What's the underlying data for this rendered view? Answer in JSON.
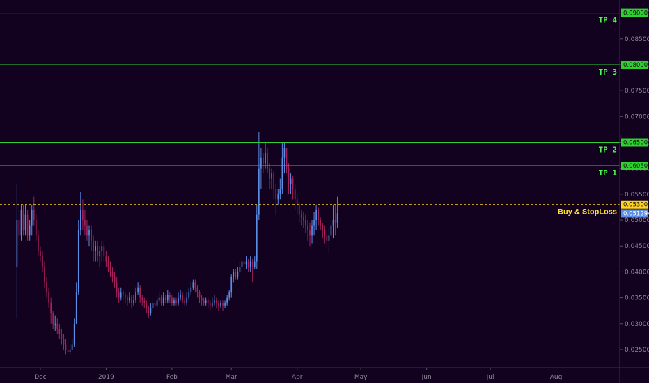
{
  "chart_data": {
    "type": "candlestick",
    "y_axis": {
      "range": [
        0.0215,
        0.0925
      ],
      "ticks": [
        "0.025000",
        "0.030000",
        "0.035000",
        "0.040000",
        "0.045000",
        "0.050000",
        "0.055000",
        "0.060000",
        "0.065000",
        "0.070000",
        "0.075000",
        "0.080000",
        "0.085000",
        "0.090000"
      ],
      "position": "right"
    },
    "x_axis": {
      "range": [
        "2018-11-12",
        "2019-08-31"
      ],
      "ticks": [
        {
          "label": "Dec",
          "date": "2018-12-01"
        },
        {
          "label": "2019",
          "date": "2019-01-01"
        },
        {
          "label": "Feb",
          "date": "2019-02-01"
        },
        {
          "label": "Mar",
          "date": "2019-03-01"
        },
        {
          "label": "Apr",
          "date": "2019-04-01"
        },
        {
          "label": "May",
          "date": "2019-05-01"
        },
        {
          "label": "Jun",
          "date": "2019-06-01"
        },
        {
          "label": "Jul",
          "date": "2019-07-01"
        },
        {
          "label": "Aug",
          "date": "2019-08-01"
        }
      ]
    },
    "levels": [
      {
        "label": "TP 4",
        "value": 0.09,
        "badge": "0.090000",
        "color": "#2fd02f",
        "style": "solid"
      },
      {
        "label": "TP 3",
        "value": 0.08,
        "badge": "0.080000",
        "color": "#2fd02f",
        "style": "solid"
      },
      {
        "label": "TP 2",
        "value": 0.065,
        "badge": "0.065000",
        "color": "#2fd02f",
        "style": "solid"
      },
      {
        "label": "TP 1",
        "value": 0.0605,
        "badge": "0.060500",
        "color": "#2fd02f",
        "style": "solid"
      },
      {
        "label": "Buy & StopLoss",
        "value": 0.053,
        "badge": "0.053000",
        "color": "#ffd21f",
        "style": "dashed"
      }
    ],
    "last_price": {
      "value": 0.051294,
      "badge": "0.051294",
      "color": "#5b8ee6"
    },
    "candles": {
      "start_date": "2018-11-20",
      "colors": {
        "up": "#5b8ee6",
        "down": "#a8225a"
      },
      "open": [
        0.041,
        0.05,
        0.047,
        0.052,
        0.048,
        0.051,
        0.047,
        0.049,
        0.052,
        0.05,
        0.047,
        0.044,
        0.043,
        0.041,
        0.038,
        0.036,
        0.034,
        0.032,
        0.03,
        0.03,
        0.029,
        0.028,
        0.027,
        0.026,
        0.025,
        0.0245,
        0.025,
        0.026,
        0.03,
        0.036,
        0.048,
        0.052,
        0.05,
        0.049,
        0.047,
        0.048,
        0.046,
        0.044,
        0.045,
        0.043,
        0.044,
        0.045,
        0.043,
        0.042,
        0.041,
        0.04,
        0.039,
        0.038,
        0.036,
        0.035,
        0.036,
        0.0355,
        0.035,
        0.0345,
        0.035,
        0.034,
        0.0345,
        0.036,
        0.037,
        0.035,
        0.0345,
        0.034,
        0.033,
        0.032,
        0.033,
        0.034,
        0.0335,
        0.0345,
        0.035,
        0.034,
        0.035,
        0.0345,
        0.0355,
        0.035,
        0.034,
        0.0345,
        0.034,
        0.035,
        0.0355,
        0.0345,
        0.034,
        0.035,
        0.036,
        0.037,
        0.038,
        0.037,
        0.036,
        0.035,
        0.0345,
        0.034,
        0.0345,
        0.034,
        0.0335,
        0.034,
        0.0345,
        0.034,
        0.0335,
        0.034,
        0.0335,
        0.034,
        0.035,
        0.036,
        0.039,
        0.04,
        0.039,
        0.04,
        0.041,
        0.042,
        0.0415,
        0.042,
        0.041,
        0.042,
        0.041,
        0.042,
        0.051,
        0.06,
        0.062,
        0.061,
        0.063,
        0.06,
        0.058,
        0.059,
        0.056,
        0.054,
        0.055,
        0.056,
        0.062,
        0.064,
        0.06,
        0.057,
        0.058,
        0.056,
        0.054,
        0.053,
        0.051,
        0.0505,
        0.05,
        0.049,
        0.048,
        0.047,
        0.049,
        0.05,
        0.052,
        0.05,
        0.049,
        0.048,
        0.047,
        0.046,
        0.047,
        0.049,
        0.05,
        0.0495
      ],
      "close": [
        0.05,
        0.047,
        0.052,
        0.048,
        0.051,
        0.047,
        0.049,
        0.052,
        0.05,
        0.047,
        0.044,
        0.043,
        0.041,
        0.038,
        0.036,
        0.034,
        0.032,
        0.03,
        0.03,
        0.029,
        0.028,
        0.027,
        0.026,
        0.025,
        0.0245,
        0.025,
        0.026,
        0.03,
        0.036,
        0.048,
        0.052,
        0.05,
        0.049,
        0.047,
        0.048,
        0.046,
        0.044,
        0.045,
        0.043,
        0.044,
        0.045,
        0.043,
        0.042,
        0.041,
        0.04,
        0.039,
        0.038,
        0.036,
        0.035,
        0.036,
        0.0355,
        0.035,
        0.0345,
        0.035,
        0.034,
        0.0345,
        0.036,
        0.037,
        0.035,
        0.0345,
        0.034,
        0.033,
        0.032,
        0.033,
        0.034,
        0.0335,
        0.0345,
        0.035,
        0.034,
        0.035,
        0.0345,
        0.0355,
        0.035,
        0.034,
        0.0345,
        0.034,
        0.035,
        0.0355,
        0.0345,
        0.034,
        0.035,
        0.036,
        0.037,
        0.038,
        0.037,
        0.036,
        0.035,
        0.0345,
        0.034,
        0.0345,
        0.034,
        0.0335,
        0.034,
        0.0345,
        0.034,
        0.0335,
        0.034,
        0.0335,
        0.034,
        0.035,
        0.036,
        0.039,
        0.04,
        0.039,
        0.04,
        0.041,
        0.042,
        0.0415,
        0.042,
        0.041,
        0.042,
        0.041,
        0.042,
        0.051,
        0.06,
        0.062,
        0.061,
        0.063,
        0.06,
        0.058,
        0.059,
        0.056,
        0.054,
        0.055,
        0.056,
        0.062,
        0.064,
        0.06,
        0.057,
        0.058,
        0.056,
        0.054,
        0.053,
        0.051,
        0.0505,
        0.05,
        0.049,
        0.048,
        0.047,
        0.049,
        0.05,
        0.052,
        0.05,
        0.049,
        0.048,
        0.047,
        0.046,
        0.047,
        0.049,
        0.05,
        0.0495,
        0.0513
      ],
      "high": [
        0.057,
        0.053,
        0.053,
        0.053,
        0.053,
        0.052,
        0.05,
        0.053,
        0.0545,
        0.051,
        0.048,
        0.045,
        0.044,
        0.042,
        0.039,
        0.037,
        0.035,
        0.0325,
        0.0315,
        0.031,
        0.03,
        0.029,
        0.028,
        0.027,
        0.026,
        0.026,
        0.027,
        0.031,
        0.038,
        0.05,
        0.0555,
        0.054,
        0.052,
        0.05,
        0.049,
        0.049,
        0.047,
        0.046,
        0.046,
        0.045,
        0.046,
        0.046,
        0.044,
        0.043,
        0.042,
        0.041,
        0.04,
        0.039,
        0.037,
        0.037,
        0.0365,
        0.036,
        0.0355,
        0.036,
        0.0355,
        0.0355,
        0.037,
        0.038,
        0.0375,
        0.0355,
        0.035,
        0.0345,
        0.0335,
        0.034,
        0.035,
        0.0345,
        0.0355,
        0.036,
        0.0355,
        0.036,
        0.0355,
        0.0365,
        0.036,
        0.0355,
        0.035,
        0.035,
        0.036,
        0.0365,
        0.036,
        0.035,
        0.036,
        0.037,
        0.038,
        0.0385,
        0.0385,
        0.0375,
        0.0365,
        0.0355,
        0.035,
        0.035,
        0.035,
        0.0345,
        0.035,
        0.0355,
        0.035,
        0.0345,
        0.0345,
        0.0345,
        0.0345,
        0.0355,
        0.0365,
        0.0395,
        0.0405,
        0.0405,
        0.041,
        0.042,
        0.043,
        0.0425,
        0.043,
        0.0425,
        0.043,
        0.0425,
        0.043,
        0.053,
        0.067,
        0.064,
        0.063,
        0.065,
        0.064,
        0.061,
        0.06,
        0.0595,
        0.057,
        0.056,
        0.058,
        0.065,
        0.065,
        0.064,
        0.061,
        0.059,
        0.0585,
        0.057,
        0.055,
        0.0535,
        0.052,
        0.0515,
        0.051,
        0.05,
        0.0495,
        0.05,
        0.0515,
        0.053,
        0.0525,
        0.0505,
        0.0495,
        0.049,
        0.048,
        0.0485,
        0.05,
        0.053,
        0.053,
        0.0545
      ],
      "low": [
        0.031,
        0.045,
        0.046,
        0.047,
        0.047,
        0.046,
        0.046,
        0.047,
        0.049,
        0.046,
        0.043,
        0.042,
        0.04,
        0.037,
        0.035,
        0.033,
        0.03,
        0.029,
        0.0285,
        0.028,
        0.027,
        0.026,
        0.025,
        0.024,
        0.0238,
        0.024,
        0.025,
        0.0255,
        0.03,
        0.0355,
        0.047,
        0.048,
        0.047,
        0.046,
        0.045,
        0.044,
        0.042,
        0.042,
        0.042,
        0.041,
        0.042,
        0.042,
        0.041,
        0.04,
        0.039,
        0.038,
        0.037,
        0.035,
        0.034,
        0.0345,
        0.0345,
        0.034,
        0.0335,
        0.034,
        0.033,
        0.0335,
        0.034,
        0.0355,
        0.034,
        0.0335,
        0.033,
        0.032,
        0.0312,
        0.0315,
        0.0325,
        0.0325,
        0.033,
        0.034,
        0.0335,
        0.0335,
        0.034,
        0.034,
        0.034,
        0.0335,
        0.0335,
        0.0335,
        0.0335,
        0.0345,
        0.034,
        0.0335,
        0.0335,
        0.0345,
        0.0355,
        0.0365,
        0.036,
        0.035,
        0.034,
        0.0335,
        0.0335,
        0.0335,
        0.033,
        0.0325,
        0.033,
        0.0335,
        0.033,
        0.0325,
        0.033,
        0.0325,
        0.033,
        0.0335,
        0.0345,
        0.035,
        0.038,
        0.0385,
        0.0385,
        0.0395,
        0.04,
        0.04,
        0.0405,
        0.04,
        0.04,
        0.038,
        0.0405,
        0.0405,
        0.05,
        0.056,
        0.059,
        0.06,
        0.059,
        0.056,
        0.056,
        0.054,
        0.051,
        0.053,
        0.054,
        0.055,
        0.059,
        0.059,
        0.055,
        0.055,
        0.054,
        0.052,
        0.051,
        0.0495,
        0.049,
        0.0485,
        0.0475,
        0.046,
        0.045,
        0.0455,
        0.047,
        0.048,
        0.049,
        0.048,
        0.0465,
        0.0455,
        0.0445,
        0.0435,
        0.0455,
        0.0465,
        0.047,
        0.0485
      ]
    }
  }
}
